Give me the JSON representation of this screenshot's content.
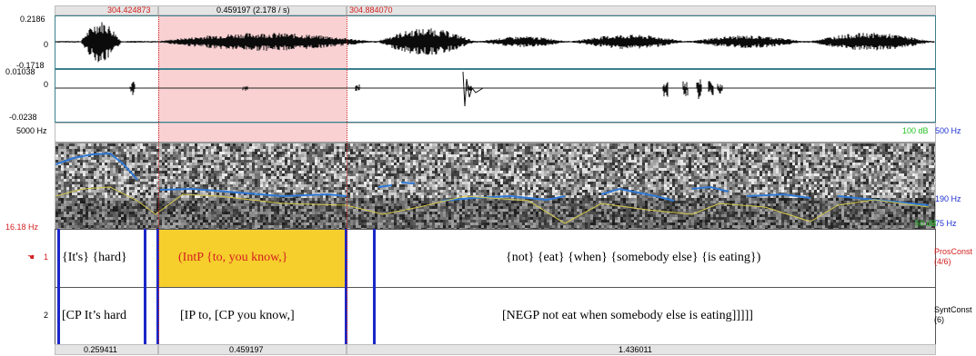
{
  "selection": {
    "start_time": "304.424873",
    "duration_label": "0.459197 (2.178 / s)",
    "end_time": "304.884070"
  },
  "waveform1": {
    "max": "0.2186",
    "zero": "0",
    "min": "-0.1718"
  },
  "waveform2": {
    "max": "0.01038",
    "zero": "0",
    "min": "-0.0238"
  },
  "spectrogram": {
    "freq_top": "5000 Hz",
    "freq_bottom": "16.18 Hz",
    "right_labels": {
      "db_top": "100 dB",
      "hz_top": "500 Hz",
      "hz_mid": "190 Hz",
      "db_bottom": "50 dB",
      "hz_bottom": "75 Hz"
    }
  },
  "tiers": [
    {
      "number": "1",
      "name": "ProsConst",
      "count": "(4/6)",
      "intervals": [
        "{It's}  {hard}",
        "(IntP   {to,    you know,}",
        "",
        "{not}  {eat}  {when}  {somebody else}  {is eating})"
      ]
    },
    {
      "number": "2",
      "name": "SyntConst",
      "count": "(6)",
      "intervals": [
        "[CP It’s hard",
        "[IP to, [CP you know,]",
        "",
        "[NEGP not eat when somebody else is eating]]]]]"
      ]
    }
  ],
  "bottom_durations": [
    "0.259411",
    "0.459197",
    "1.436011"
  ],
  "colors": {
    "selection": "#f9d1d3",
    "selected_interval": "#f6cf2d",
    "boundary": "#1a27c8",
    "pitch": "#2f79d6",
    "intensity": "#d5c94a"
  }
}
